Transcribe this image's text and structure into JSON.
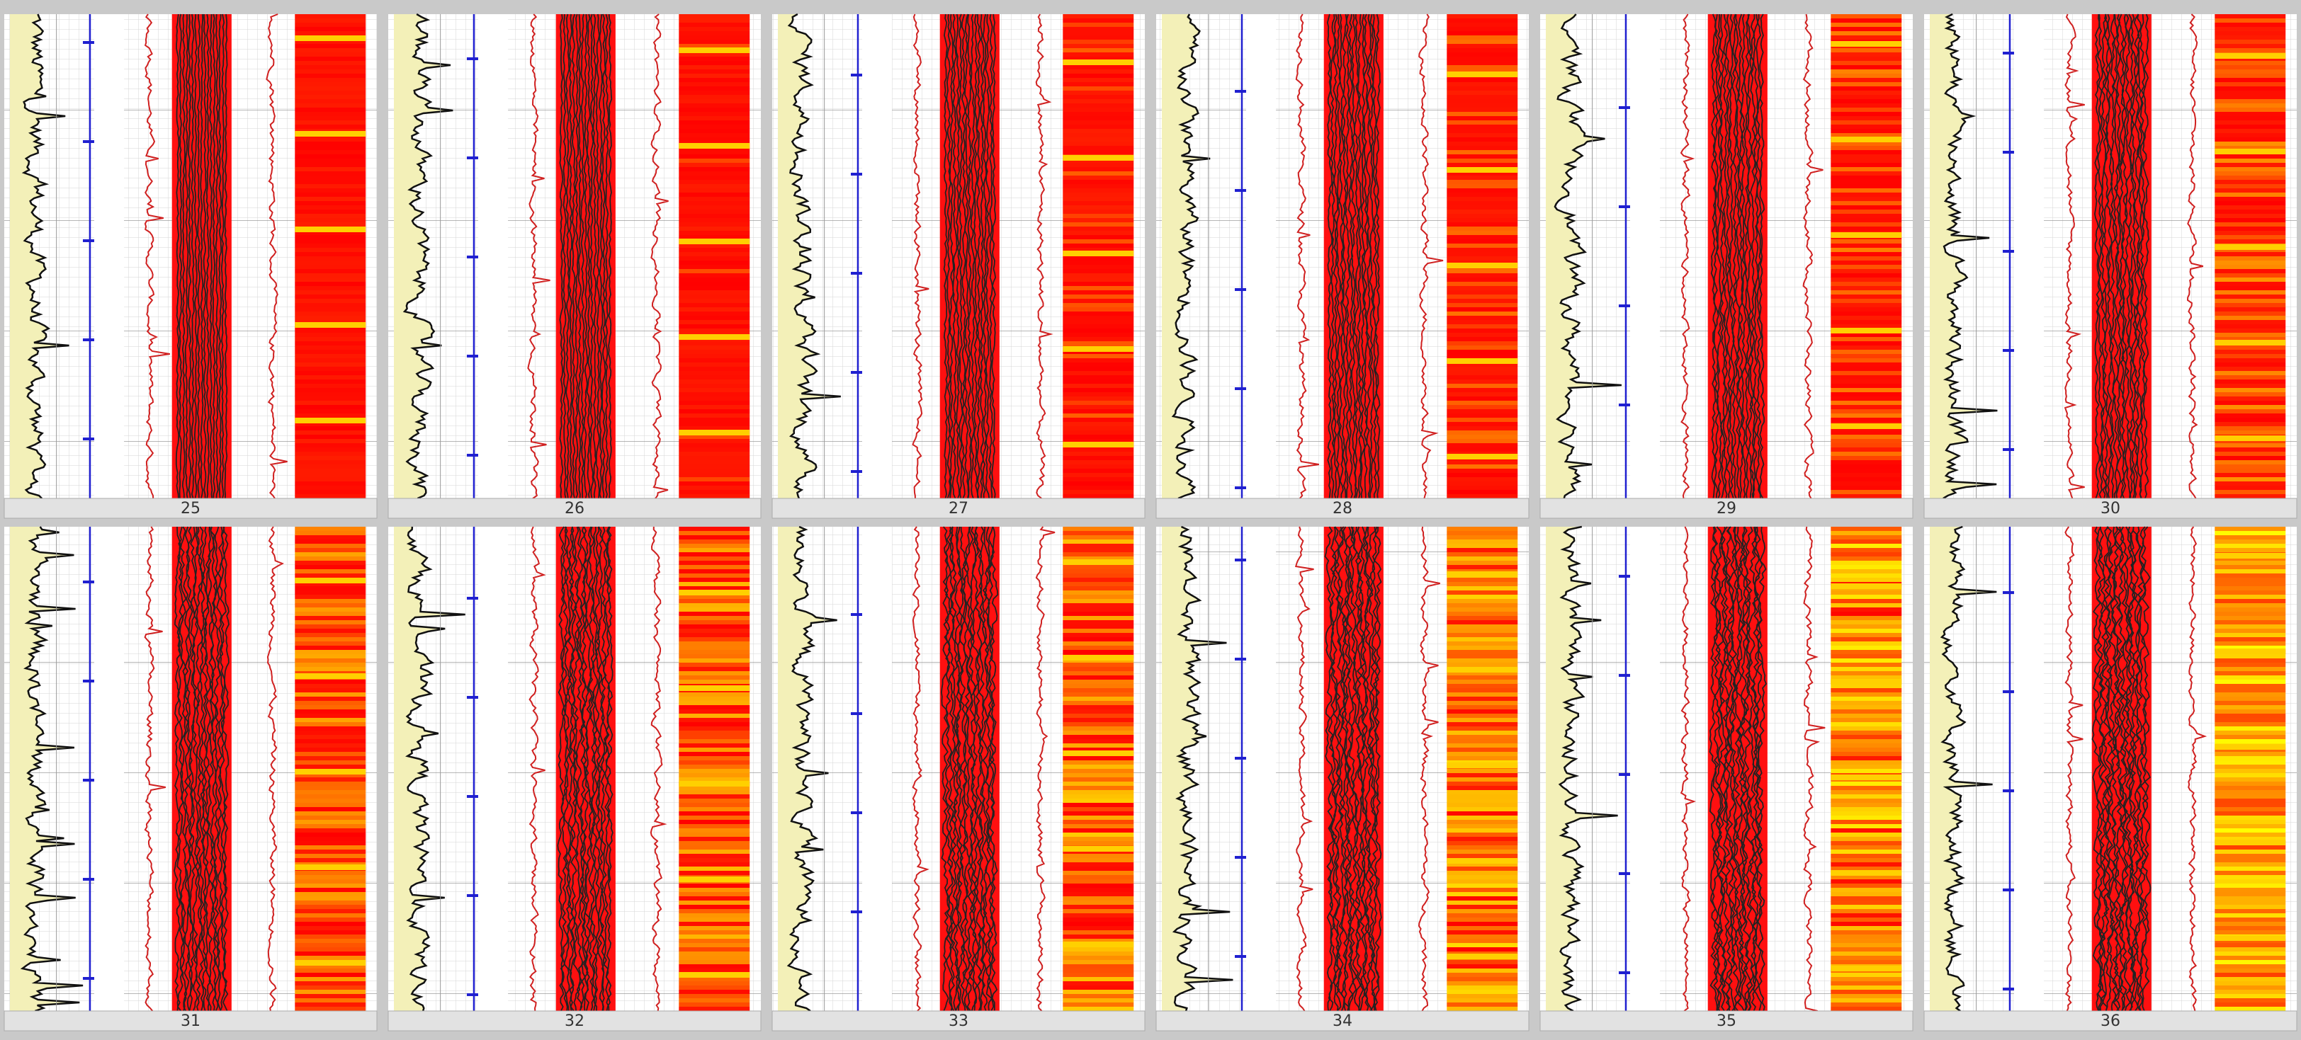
{
  "panels": [
    {
      "label": "25"
    },
    {
      "label": "26"
    },
    {
      "label": "27"
    },
    {
      "label": "28"
    },
    {
      "label": "29"
    },
    {
      "label": "30"
    },
    {
      "label": "31"
    },
    {
      "label": "32"
    },
    {
      "label": "33"
    },
    {
      "label": "34"
    },
    {
      "label": "35"
    },
    {
      "label": "36"
    }
  ]
}
